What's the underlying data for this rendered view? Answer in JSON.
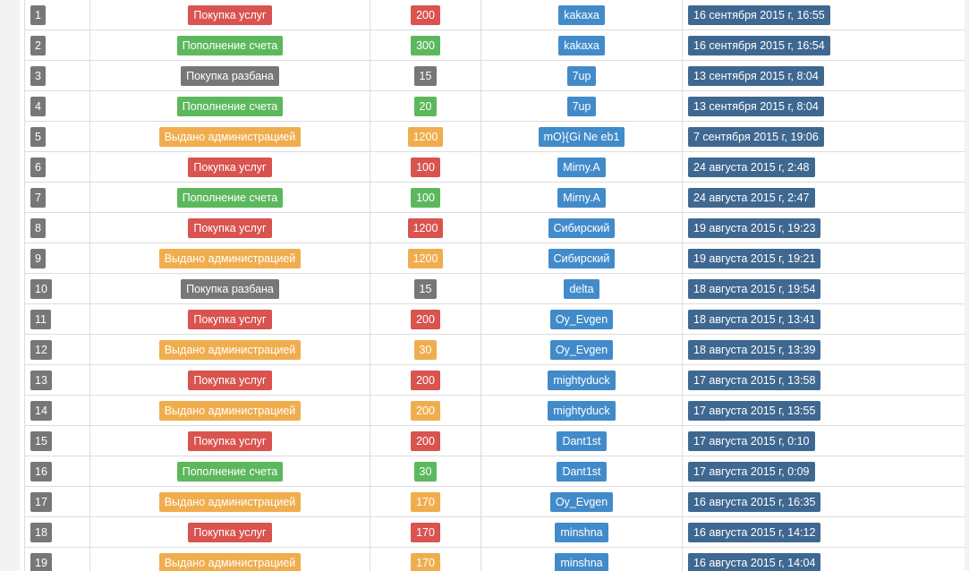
{
  "colors": {
    "purchase": "#d9534f",
    "deposit": "#5cb85c",
    "admin": "#f0ad4e",
    "unban": "#777777",
    "user": "#428bca",
    "date": "#3f6891"
  },
  "transactions": [
    {
      "num": "1",
      "type": "Покупка услуг",
      "kind": "purchase",
      "amount": "200",
      "user": "kakaxa",
      "date": "16 сентября 2015 г, 16:55"
    },
    {
      "num": "2",
      "type": "Пополнение счета",
      "kind": "deposit",
      "amount": "300",
      "user": "kakaxa",
      "date": "16 сентября 2015 г, 16:54"
    },
    {
      "num": "3",
      "type": "Покупка разбана",
      "kind": "unban",
      "amount": "15",
      "user": "7up",
      "date": "13 сентября 2015 г, 8:04"
    },
    {
      "num": "4",
      "type": "Пополнение счета",
      "kind": "deposit",
      "amount": "20",
      "user": "7up",
      "date": "13 сентября 2015 г, 8:04"
    },
    {
      "num": "5",
      "type": "Выдано администрацией",
      "kind": "admin",
      "amount": "1200",
      "user": "mO}{Gi Ne eb1",
      "date": "7 сентября 2015 г, 19:06"
    },
    {
      "num": "6",
      "type": "Покупка услуг",
      "kind": "purchase",
      "amount": "100",
      "user": "Mirny.A",
      "date": "24 августа 2015 г, 2:48"
    },
    {
      "num": "7",
      "type": "Пополнение счета",
      "kind": "deposit",
      "amount": "100",
      "user": "Mirny.A",
      "date": "24 августа 2015 г, 2:47"
    },
    {
      "num": "8",
      "type": "Покупка услуг",
      "kind": "purchase",
      "amount": "1200",
      "user": "Сибирский",
      "date": "19 августа 2015 г, 19:23"
    },
    {
      "num": "9",
      "type": "Выдано администрацией",
      "kind": "admin",
      "amount": "1200",
      "user": "Сибирский",
      "date": "19 августа 2015 г, 19:21"
    },
    {
      "num": "10",
      "type": "Покупка разбана",
      "kind": "unban",
      "amount": "15",
      "user": "delta",
      "date": "18 августа 2015 г, 19:54"
    },
    {
      "num": "11",
      "type": "Покупка услуг",
      "kind": "purchase",
      "amount": "200",
      "user": "Oy_Evgen",
      "date": "18 августа 2015 г, 13:41"
    },
    {
      "num": "12",
      "type": "Выдано администрацией",
      "kind": "admin",
      "amount": "30",
      "user": "Oy_Evgen",
      "date": "18 августа 2015 г, 13:39"
    },
    {
      "num": "13",
      "type": "Покупка услуг",
      "kind": "purchase",
      "amount": "200",
      "user": "mightyduck",
      "date": "17 августа 2015 г, 13:58"
    },
    {
      "num": "14",
      "type": "Выдано администрацией",
      "kind": "admin",
      "amount": "200",
      "user": "mightyduck",
      "date": "17 августа 2015 г, 13:55"
    },
    {
      "num": "15",
      "type": "Покупка услуг",
      "kind": "purchase",
      "amount": "200",
      "user": "Dant1st",
      "date": "17 августа 2015 г, 0:10"
    },
    {
      "num": "16",
      "type": "Пополнение счета",
      "kind": "deposit",
      "amount": "30",
      "user": "Dant1st",
      "date": "17 августа 2015 г, 0:09"
    },
    {
      "num": "17",
      "type": "Выдано администрацией",
      "kind": "admin",
      "amount": "170",
      "user": "Oy_Evgen",
      "date": "16 августа 2015 г, 16:35"
    },
    {
      "num": "18",
      "type": "Покупка услуг",
      "kind": "purchase",
      "amount": "170",
      "user": "minshna",
      "date": "16 августа 2015 г, 14:12"
    },
    {
      "num": "19",
      "type": "Выдано администрацией",
      "kind": "admin",
      "amount": "170",
      "user": "minshna",
      "date": "16 августа 2015 г, 14:04"
    }
  ]
}
